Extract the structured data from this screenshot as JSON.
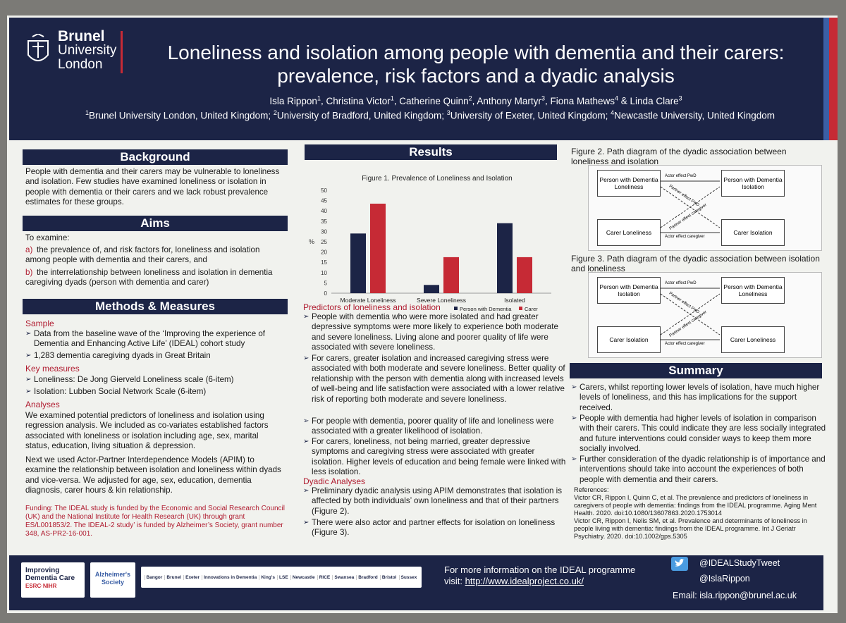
{
  "header": {
    "logo": {
      "line1": "Brunel",
      "line2": "University",
      "line3": "London"
    },
    "title_line1": "Loneliness and isolation among people with dementia and their carers:",
    "title_line2": "prevalence, risk factors and a dyadic analysis",
    "authors": [
      {
        "name": "Isla Rippon",
        "sup": "1"
      },
      {
        "name": "Christina Victor",
        "sup": "1"
      },
      {
        "name": "Catherine Quinn",
        "sup": "2"
      },
      {
        "name": "Anthony Martyr",
        "sup": "3"
      },
      {
        "name": "Fiona Mathews",
        "sup": "4"
      },
      {
        "name": "Linda Clare",
        "sup": "3"
      }
    ],
    "affiliations": [
      {
        "sup": "1",
        "text": "Brunel University London, United Kingdom;"
      },
      {
        "sup": "2",
        "text": "University of Bradford, United Kingdom;"
      },
      {
        "sup": "3",
        "text": "University of Exeter, United Kingdom;"
      },
      {
        "sup": "4",
        "text": "Newcastle University, United Kingdom"
      }
    ]
  },
  "background": {
    "heading": "Background",
    "text": "People with dementia and their carers may be vulnerable to loneliness and isolation. Few studies have examined loneliness or isolation in people with dementia or their carers and we lack robust prevalence estimates for these groups."
  },
  "aims": {
    "heading": "Aims",
    "intro": "To examine:",
    "items": [
      {
        "label": "a)",
        "text": "the prevalence of, and risk factors for, loneliness and isolation among people with dementia and their carers, and"
      },
      {
        "label": "b)",
        "text": "the interrelationship between loneliness and isolation in dementia caregiving dyads (person with dementia and carer)"
      }
    ]
  },
  "methods": {
    "heading": "Methods & Measures",
    "sample_heading": "Sample",
    "sample_items": [
      "Data from the baseline wave of the ‘Improving the experience of Dementia and Enhancing Active Life’ (IDEAL) cohort study",
      "1,283 dementia caregiving dyads in Great Britain"
    ],
    "measures_heading": "Key measures",
    "measures_items": [
      "Loneliness: De Jong Gierveld Loneliness scale (6-item)",
      "Isolation: Lubben Social Network Scale (6-item)"
    ],
    "analyses_heading": "Analyses",
    "analyses_p1": "We examined potential predictors of loneliness and isolation using regression analysis. We included as co-variates established factors associated with loneliness or isolation including age, sex, marital status, education, living situation & depression.",
    "analyses_p2": "Next we used Actor-Partner Interdependence Models (APIM) to examine the relationship between isolation and loneliness within dyads and vice-versa. We adjusted for age, sex, education, dementia diagnosis, carer hours & kin relationship.",
    "funding": "Funding: The IDEAL study is funded by the Economic and Social Research Council (UK) and the National Institute for Health Research (UK) through grant ES/L001853/2. The IDEAL-2 study’ is funded by Alzheimer’s Society, grant number 348, AS-PR2-16-001."
  },
  "results": {
    "heading": "Results",
    "predictors_heading": "Predictors of loneliness and isolation",
    "predictors_items": [
      "People with dementia who were more isolated and had greater depressive symptoms were more likely to experience both moderate and severe loneliness. Living alone and poorer quality of life were associated with severe loneliness.",
      "For carers, greater isolation and increased caregiving stress were associated with both moderate and severe loneliness. Better quality of relationship with the person with dementia along with increased levels of well-being and life satisfaction were associated with a lower relative risk of reporting both moderate and severe loneliness.",
      "For people with dementia, poorer quality of life and loneliness were associated with a greater likelihood of isolation.",
      "For carers, loneliness, not being married, greater depressive symptoms and caregiving stress were associated with greater isolation. Higher levels of education and being female were linked with less isolation."
    ],
    "dyadic_heading": "Dyadic Analyses",
    "dyadic_items": [
      "Preliminary dyadic analysis using APIM demonstrates that isolation is affected by both individuals’ own loneliness and that of their partners (Figure 2).",
      "There were also actor and partner effects for isolation on loneliness (Figure 3)."
    ]
  },
  "chart_data": {
    "type": "bar",
    "title": "Figure 1. Prevalence of Loneliness and Isolation",
    "categories": [
      "Moderate Loneliness",
      "Severe Loneliness",
      "Isolated"
    ],
    "series": [
      {
        "name": "Person with Dementia",
        "values": [
          29,
          4,
          34
        ],
        "color": "#1c2446"
      },
      {
        "name": "Carer",
        "values": [
          43.5,
          17.5,
          17.5
        ],
        "color": "#c62a35"
      }
    ],
    "ylabel": "%",
    "ylim": [
      0,
      50
    ],
    "yticks": [
      0,
      5,
      10,
      15,
      20,
      25,
      30,
      35,
      40,
      45,
      50
    ]
  },
  "figure2": {
    "caption": "Figure 2. Path diagram of the dyadic association between loneliness and isolation",
    "box_tl": "Person with Dementia Loneliness",
    "box_tr": "Person with Dementia Isolation",
    "box_bl": "Carer Loneliness",
    "box_br": "Carer Isolation",
    "actor_top": "Actor effect PwD",
    "actor_bottom": "Actor effect caregiver",
    "partner1": "Partner effect PwD",
    "partner2": "Partner effect caregiver"
  },
  "figure3": {
    "caption": "Figure 3. Path diagram of the dyadic association between isolation and loneliness",
    "box_tl": "Person with Dementia Isolation",
    "box_tr": "Person with Dementia Loneliness",
    "box_bl": "Carer Isolation",
    "box_br": "Carer Loneliness",
    "actor_top": "Actor effect PwD",
    "actor_bottom": "Actor effect caregiver",
    "partner1": "Partner effect PwD",
    "partner2": "Partner effect caregiver"
  },
  "summary": {
    "heading": "Summary",
    "items": [
      "Carers, whilst reporting lower levels of isolation, have much higher levels of loneliness, and this has implications for the support received.",
      "People with dementia had higher levels of isolation in comparison with their carers. This could indicate they are less socially integrated and future interventions could consider ways to keep them more socially involved.",
      "Further consideration of the dyadic relationship is of importance and interventions should take into account the experiences of both people with dementia and their carers."
    ],
    "refs_heading": "References:",
    "ref1": "Victor CR, Rippon I, Quinn C, et al. The prevalence and predictors of loneliness in caregivers of people with dementia: findings from the IDEAL programme. Aging Ment Health. 2020. doi:10.1080/13607863.2020.1753014",
    "ref2": "Victor CR, Rippon I, Nelis SM, et al. Prevalence and determinants of loneliness in people living with dementia: findings from the IDEAL programme. Int J Geriatr Psychiatry. 2020. doi:10.1002/gps.5305"
  },
  "footer": {
    "logo1_line1": "Improving",
    "logo1_line2": "Dementia Care",
    "logo1_line3": "ESRC·NIHR",
    "logo2": "Alzheimer's Society",
    "partners": [
      "Bangor",
      "Brunel",
      "Exeter",
      "Innovations in Dementia",
      "King's",
      "LSE",
      "Newcastle",
      "RICE",
      "Swansea",
      "Bradford",
      "Bristol",
      "Sussex"
    ],
    "info_line": "For more information on the IDEAL programme",
    "visit_label": "visit:",
    "url": "http://www.idealproject.co.uk/",
    "twitter1": "@IDEALStudyTweet",
    "twitter2": "@IslaRippon",
    "email": "Email:  isla.rippon@brunel.ac.uk"
  }
}
